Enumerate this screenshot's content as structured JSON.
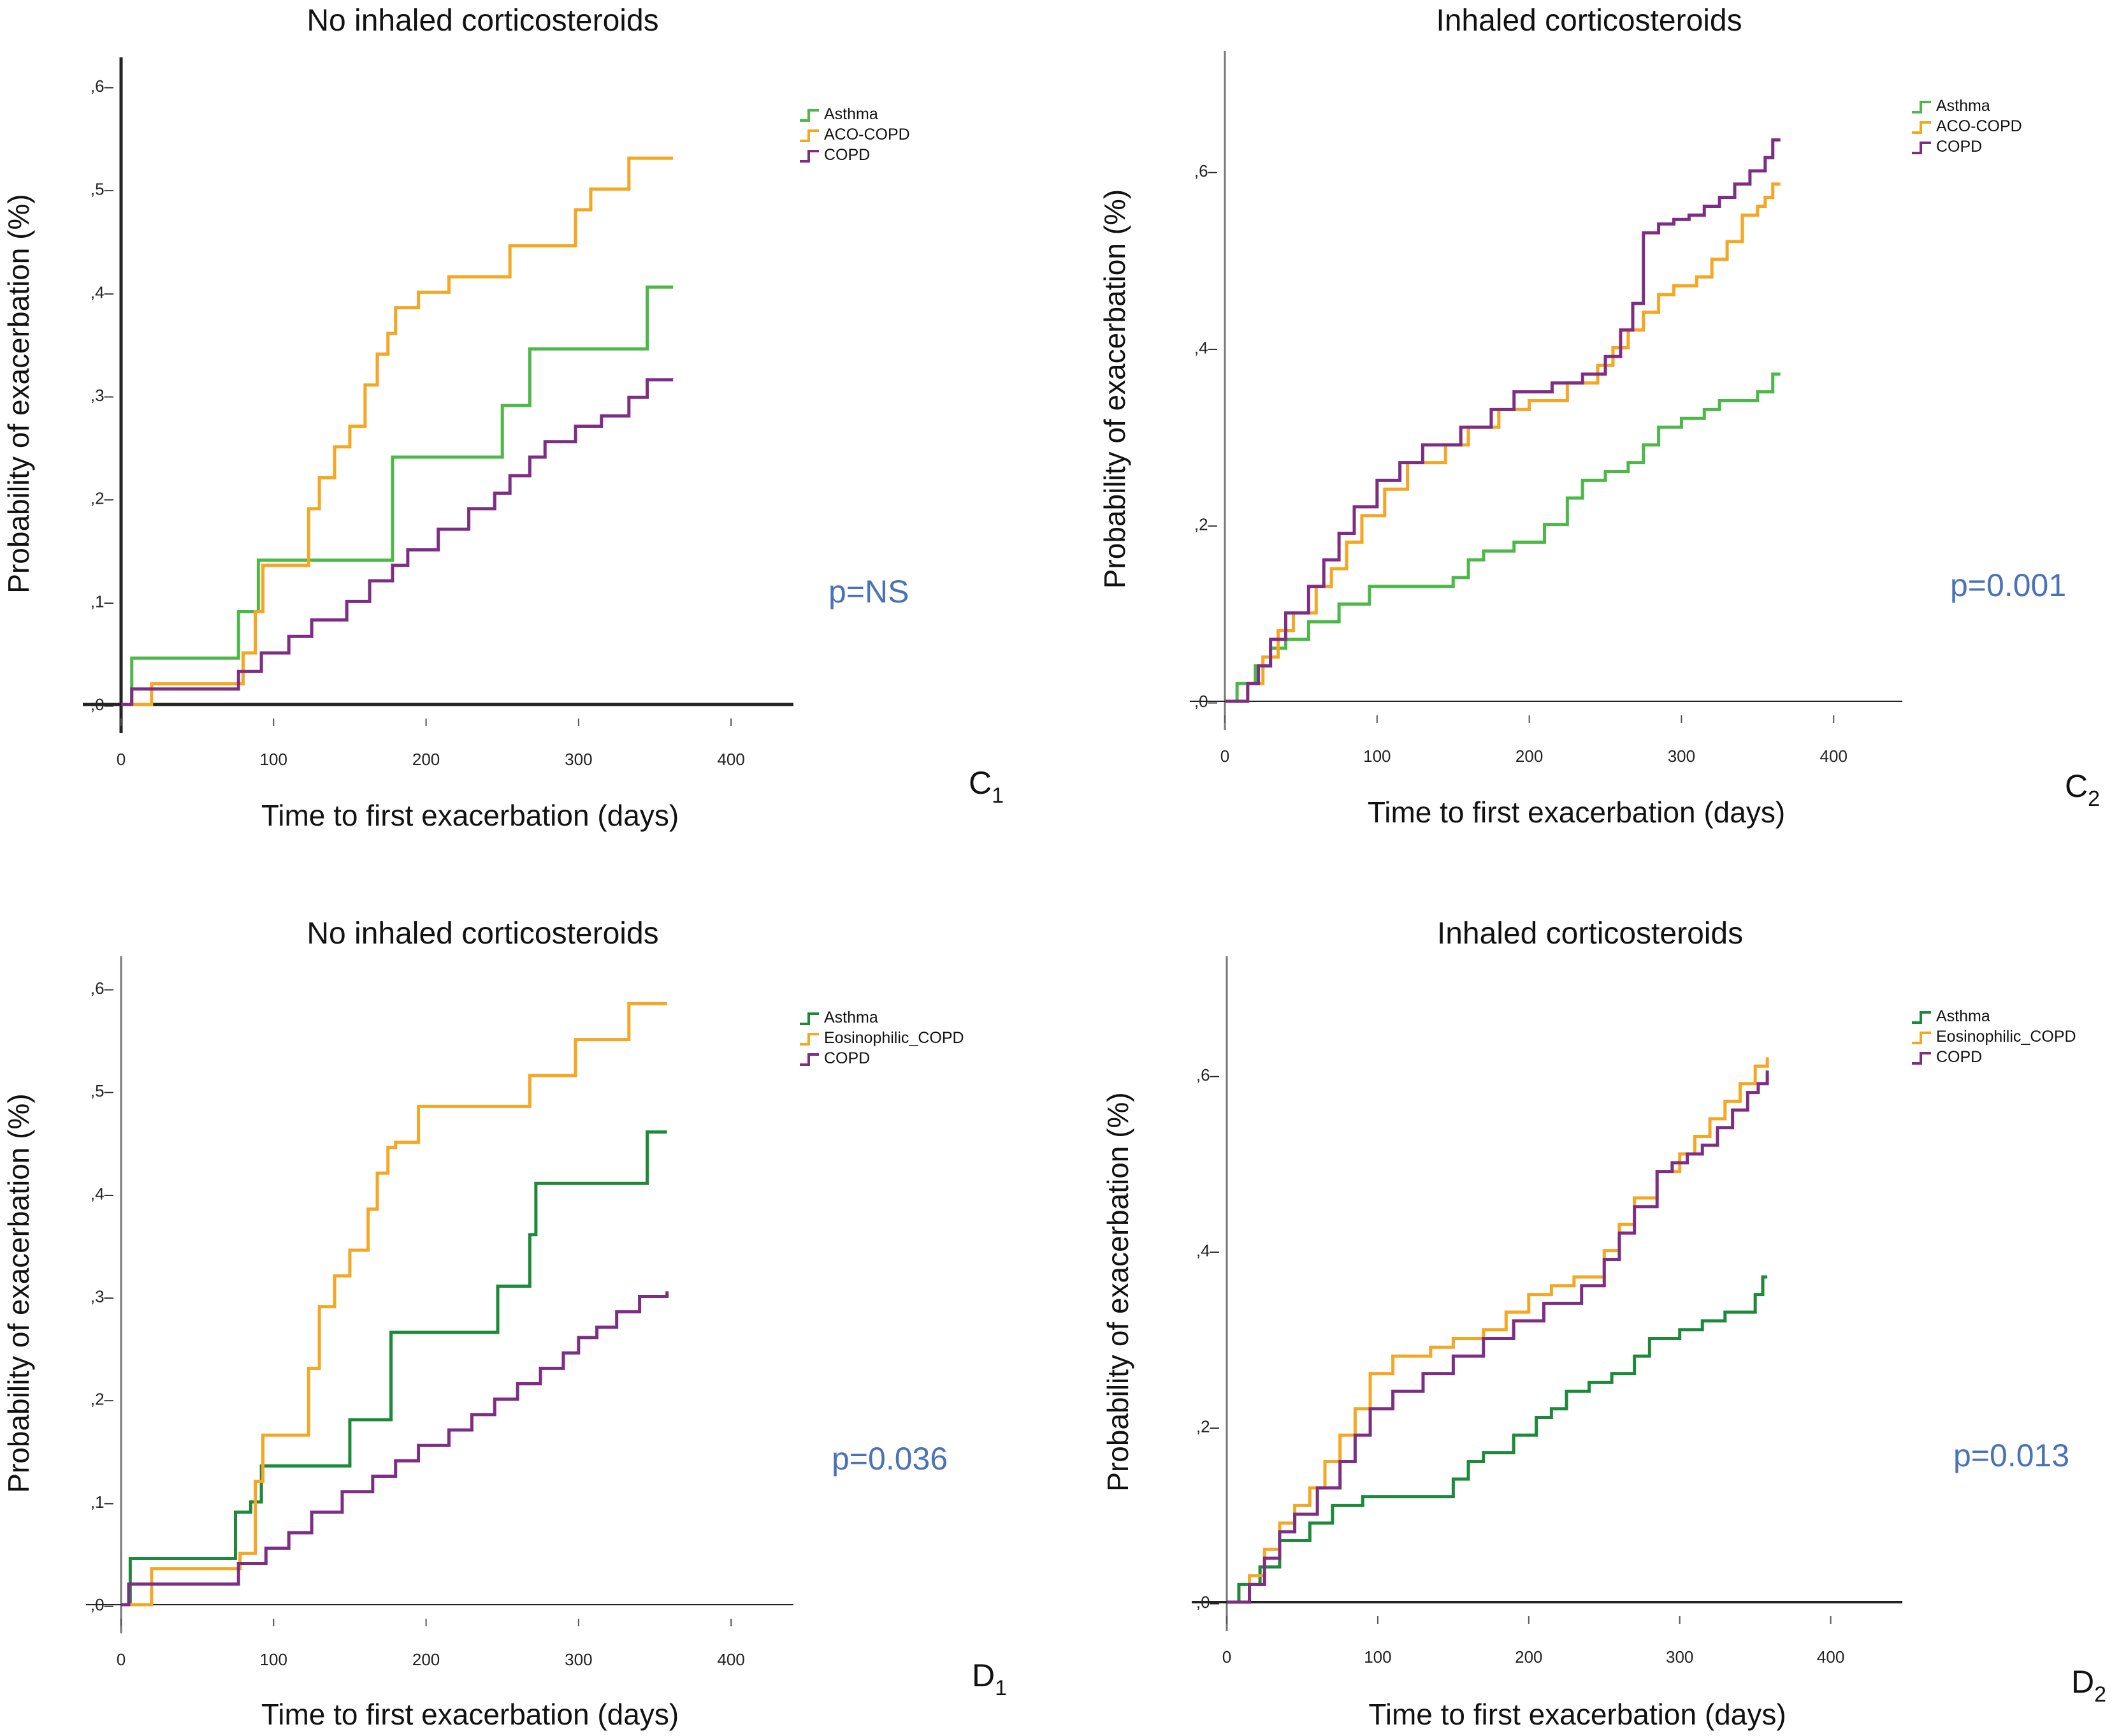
{
  "chart_data": [
    {
      "id": "C1",
      "type": "line",
      "title": "No inhaled corticosteroids",
      "xlabel": "Time to first exacerbation (days)",
      "ylabel": "Probability of exacerbation (%)",
      "xlim": [
        0,
        420
      ],
      "ylim": [
        0,
        0.6
      ],
      "xticks": [
        0,
        100,
        200,
        300,
        400
      ],
      "xtick_labels": [
        "0",
        "100",
        "200",
        "300",
        "400"
      ],
      "yticks": [
        0,
        0.1,
        0.2,
        0.3,
        0.4,
        0.5,
        0.6
      ],
      "ytick_labels": [
        ",0–",
        ",1–",
        ",2–",
        ",3–",
        ",4–",
        ",5–",
        ",6–"
      ],
      "legend": "top-right",
      "annotation": "p=NS",
      "panel_label": "C",
      "panel_sub": "1",
      "series": [
        {
          "name": "Asthma",
          "color": "#4cb848",
          "x": [
            0,
            7,
            77,
            90,
            178,
            250,
            268,
            345,
            362
          ],
          "y": [
            0,
            0.045,
            0.09,
            0.14,
            0.24,
            0.29,
            0.345,
            0.405,
            0.405
          ]
        },
        {
          "name": "ACO-COPD",
          "color": "#f5a623",
          "x": [
            0,
            20,
            80,
            88,
            93,
            123,
            130,
            140,
            150,
            160,
            168,
            175,
            180,
            195,
            215,
            255,
            298,
            308,
            333,
            362
          ],
          "y": [
            0,
            0.02,
            0.05,
            0.09,
            0.135,
            0.19,
            0.22,
            0.25,
            0.27,
            0.31,
            0.34,
            0.36,
            0.385,
            0.4,
            0.415,
            0.445,
            0.48,
            0.5,
            0.53,
            0.53
          ]
        },
        {
          "name": "COPD",
          "color": "#7d2e84",
          "x": [
            0,
            7,
            77,
            92,
            110,
            125,
            148,
            163,
            178,
            188,
            208,
            228,
            245,
            255,
            268,
            278,
            298,
            315,
            333,
            345,
            362
          ],
          "y": [
            0,
            0.015,
            0.032,
            0.05,
            0.066,
            0.082,
            0.1,
            0.12,
            0.135,
            0.15,
            0.17,
            0.19,
            0.205,
            0.222,
            0.24,
            0.255,
            0.27,
            0.28,
            0.298,
            0.315,
            0.315
          ]
        }
      ]
    },
    {
      "id": "C2",
      "type": "line",
      "title": "Inhaled corticosteroids",
      "xlabel": "Time to first exacerbation (days)",
      "ylabel": "Probability of exacerbation (%)",
      "xlim": [
        0,
        420
      ],
      "ylim": [
        0,
        0.6
      ],
      "xticks": [
        0,
        100,
        200,
        300,
        400
      ],
      "xtick_labels": [
        "0",
        "100",
        "200",
        "300",
        "400"
      ],
      "yticks": [
        0,
        0.2,
        0.4,
        0.6
      ],
      "ytick_labels": [
        ",0–",
        ",2–",
        ",4–",
        ",6–"
      ],
      "legend": "top-right",
      "annotation": "p=0.001",
      "panel_label": "C",
      "panel_sub": "2",
      "series": [
        {
          "name": "Asthma",
          "color": "#4cb848",
          "x": [
            0,
            8,
            20,
            30,
            40,
            55,
            75,
            95,
            110,
            130,
            150,
            160,
            170,
            190,
            210,
            225,
            235,
            250,
            265,
            275,
            285,
            300,
            315,
            325,
            350,
            360,
            365
          ],
          "y": [
            0,
            0.02,
            0.04,
            0.06,
            0.07,
            0.09,
            0.11,
            0.13,
            0.13,
            0.13,
            0.14,
            0.16,
            0.17,
            0.18,
            0.2,
            0.23,
            0.25,
            0.26,
            0.27,
            0.29,
            0.31,
            0.32,
            0.33,
            0.34,
            0.35,
            0.37,
            0.37
          ]
        },
        {
          "name": "ACO-COPD",
          "color": "#f5a623",
          "x": [
            0,
            15,
            25,
            35,
            45,
            60,
            70,
            80,
            90,
            105,
            120,
            145,
            160,
            180,
            200,
            225,
            245,
            255,
            265,
            275,
            285,
            295,
            310,
            320,
            330,
            340,
            350,
            355,
            360,
            365
          ],
          "y": [
            0,
            0.02,
            0.05,
            0.08,
            0.1,
            0.13,
            0.15,
            0.18,
            0.21,
            0.24,
            0.27,
            0.29,
            0.31,
            0.33,
            0.34,
            0.36,
            0.38,
            0.4,
            0.42,
            0.44,
            0.46,
            0.47,
            0.48,
            0.5,
            0.52,
            0.55,
            0.56,
            0.57,
            0.585,
            0.585
          ]
        },
        {
          "name": "COPD",
          "color": "#7d2e84",
          "x": [
            0,
            15,
            22,
            30,
            40,
            55,
            65,
            75,
            85,
            100,
            115,
            130,
            155,
            175,
            190,
            215,
            235,
            250,
            260,
            268,
            275,
            285,
            295,
            305,
            315,
            325,
            335,
            345,
            355,
            360,
            365
          ],
          "y": [
            0,
            0.02,
            0.04,
            0.07,
            0.1,
            0.13,
            0.16,
            0.19,
            0.22,
            0.25,
            0.27,
            0.29,
            0.31,
            0.33,
            0.35,
            0.36,
            0.37,
            0.39,
            0.42,
            0.45,
            0.53,
            0.54,
            0.545,
            0.55,
            0.56,
            0.57,
            0.585,
            0.6,
            0.615,
            0.635,
            0.635
          ]
        }
      ]
    },
    {
      "id": "D1",
      "type": "line",
      "title": "No inhaled corticosteroids",
      "xlabel": "Time to first exacerbation (days)",
      "ylabel": "Probability of exacerbation (%)",
      "xlim": [
        0,
        420
      ],
      "ylim": [
        0,
        0.6
      ],
      "xticks": [
        0,
        100,
        200,
        300,
        400
      ],
      "xtick_labels": [
        "0",
        "100",
        "200",
        "300",
        "400"
      ],
      "yticks": [
        0,
        0.1,
        0.2,
        0.3,
        0.4,
        0.5,
        0.6
      ],
      "ytick_labels": [
        ",0–",
        ",1–",
        ",2–",
        ",3–",
        ",4–",
        ",5–",
        ",6–"
      ],
      "legend": "top-right",
      "annotation": "p=0.036",
      "panel_label": "D",
      "panel_sub": "1",
      "series": [
        {
          "name": "Asthma",
          "color": "#1d8a3a",
          "x": [
            0,
            6,
            75,
            85,
            92,
            150,
            177,
            247,
            268,
            272,
            345,
            358
          ],
          "y": [
            0,
            0.045,
            0.09,
            0.1,
            0.135,
            0.18,
            0.265,
            0.31,
            0.36,
            0.41,
            0.46,
            0.46
          ]
        },
        {
          "name": "Eosinophilic_COPD",
          "color": "#f5a623",
          "x": [
            0,
            20,
            78,
            88,
            93,
            123,
            130,
            140,
            150,
            162,
            168,
            175,
            180,
            195,
            213,
            268,
            298,
            308,
            333,
            358
          ],
          "y": [
            0,
            0.035,
            0.05,
            0.12,
            0.165,
            0.23,
            0.29,
            0.32,
            0.345,
            0.385,
            0.42,
            0.445,
            0.45,
            0.485,
            0.485,
            0.515,
            0.55,
            0.55,
            0.585,
            0.585
          ]
        },
        {
          "name": "COPD",
          "color": "#7d2e84",
          "x": [
            0,
            5,
            77,
            95,
            110,
            125,
            145,
            165,
            180,
            195,
            215,
            230,
            245,
            260,
            275,
            290,
            300,
            312,
            325,
            340,
            358
          ],
          "y": [
            0,
            0.02,
            0.04,
            0.055,
            0.07,
            0.09,
            0.11,
            0.125,
            0.14,
            0.155,
            0.17,
            0.185,
            0.2,
            0.215,
            0.23,
            0.245,
            0.26,
            0.27,
            0.285,
            0.3,
            0.305
          ]
        }
      ]
    },
    {
      "id": "D2",
      "type": "line",
      "title": "Inhaled corticosteroids",
      "xlabel": "Time to first exacerbation (days)",
      "ylabel": "Probability of exacerbation (%)",
      "xlim": [
        0,
        420
      ],
      "ylim": [
        0,
        0.6
      ],
      "xticks": [
        0,
        100,
        200,
        300,
        400
      ],
      "xtick_labels": [
        "0",
        "100",
        "200",
        "300",
        "400"
      ],
      "yticks": [
        0,
        0.2,
        0.4,
        0.6
      ],
      "ytick_labels": [
        ",0–",
        ",2–",
        ",4–",
        ",6–"
      ],
      "legend": "top-right",
      "annotation": "p=0.013",
      "panel_label": "D",
      "panel_sub": "2",
      "series": [
        {
          "name": "Asthma",
          "color": "#1d8a3a",
          "x": [
            0,
            8,
            22,
            35,
            55,
            70,
            90,
            110,
            125,
            150,
            160,
            170,
            190,
            205,
            215,
            225,
            240,
            255,
            270,
            280,
            300,
            315,
            330,
            350,
            355,
            358
          ],
          "y": [
            0,
            0.02,
            0.04,
            0.07,
            0.09,
            0.11,
            0.12,
            0.12,
            0.12,
            0.14,
            0.16,
            0.17,
            0.19,
            0.21,
            0.22,
            0.24,
            0.25,
            0.26,
            0.28,
            0.3,
            0.31,
            0.32,
            0.33,
            0.35,
            0.37,
            0.37
          ]
        },
        {
          "name": "Eosinophilic_COPD",
          "color": "#f5a623",
          "x": [
            0,
            15,
            25,
            35,
            45,
            55,
            65,
            75,
            85,
            95,
            110,
            135,
            150,
            170,
            185,
            200,
            215,
            230,
            250,
            260,
            270,
            285,
            300,
            310,
            320,
            330,
            340,
            350,
            358
          ],
          "y": [
            0,
            0.03,
            0.06,
            0.09,
            0.11,
            0.13,
            0.16,
            0.19,
            0.22,
            0.26,
            0.28,
            0.29,
            0.3,
            0.31,
            0.33,
            0.35,
            0.36,
            0.37,
            0.4,
            0.43,
            0.46,
            0.49,
            0.51,
            0.53,
            0.55,
            0.57,
            0.59,
            0.61,
            0.62
          ]
        },
        {
          "name": "COPD",
          "color": "#7d2e84",
          "x": [
            0,
            15,
            25,
            35,
            45,
            60,
            75,
            85,
            95,
            110,
            130,
            150,
            170,
            190,
            210,
            235,
            250,
            260,
            270,
            285,
            295,
            305,
            315,
            325,
            335,
            345,
            352,
            358
          ],
          "y": [
            0,
            0.02,
            0.05,
            0.08,
            0.1,
            0.13,
            0.16,
            0.19,
            0.22,
            0.24,
            0.26,
            0.28,
            0.3,
            0.32,
            0.34,
            0.36,
            0.39,
            0.42,
            0.45,
            0.49,
            0.5,
            0.51,
            0.52,
            0.54,
            0.56,
            0.58,
            0.59,
            0.605
          ]
        }
      ]
    }
  ]
}
